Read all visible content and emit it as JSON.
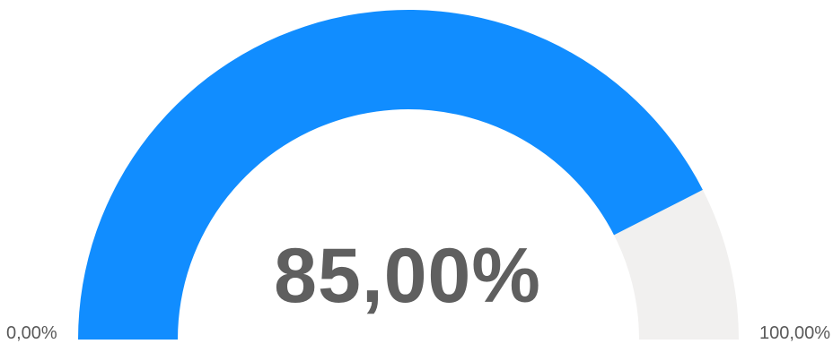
{
  "chart_data": {
    "type": "gauge",
    "value": 85.0,
    "min": 0,
    "max": 100,
    "value_label": "85,00%",
    "min_label": "0,00%",
    "max_label": "100,00%",
    "colors": {
      "fill": "#118dff",
      "track": "#f1f0ef",
      "value_text": "#5f5f5f",
      "axis_text": "#595959"
    }
  }
}
